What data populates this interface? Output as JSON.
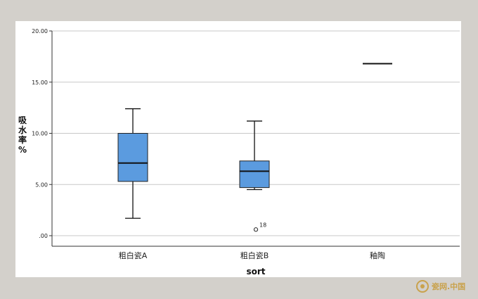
{
  "chart_data": {
    "type": "boxplot",
    "xlabel": "sort",
    "ylabel": "吸水率%",
    "ylim": [
      0,
      20
    ],
    "yticks": [
      {
        "value": 0,
        "label": ".00"
      },
      {
        "value": 5,
        "label": "5.00"
      },
      {
        "value": 10,
        "label": "10.00"
      },
      {
        "value": 15,
        "label": "15.00"
      },
      {
        "value": 20,
        "label": "20.00"
      }
    ],
    "grid": true,
    "box_color": "#5b9bdf",
    "categories": [
      "粗白瓷A",
      "粗白瓷B",
      "釉陶"
    ],
    "boxes": [
      {
        "category": "粗白瓷A",
        "min": 1.7,
        "q1": 5.3,
        "median": 7.1,
        "q3": 10.0,
        "max": 12.4,
        "outliers": []
      },
      {
        "category": "粗白瓷B",
        "min": 4.5,
        "q1": 4.7,
        "median": 6.3,
        "q3": 7.3,
        "max": 11.2,
        "outliers": [
          {
            "value": 0.6,
            "label": "18"
          }
        ]
      },
      {
        "category": "釉陶",
        "min": 16.8,
        "q1": 16.8,
        "median": 16.8,
        "q3": 16.8,
        "max": 16.8,
        "outliers": []
      }
    ]
  },
  "watermark": {
    "text": "瓷网.中国"
  }
}
